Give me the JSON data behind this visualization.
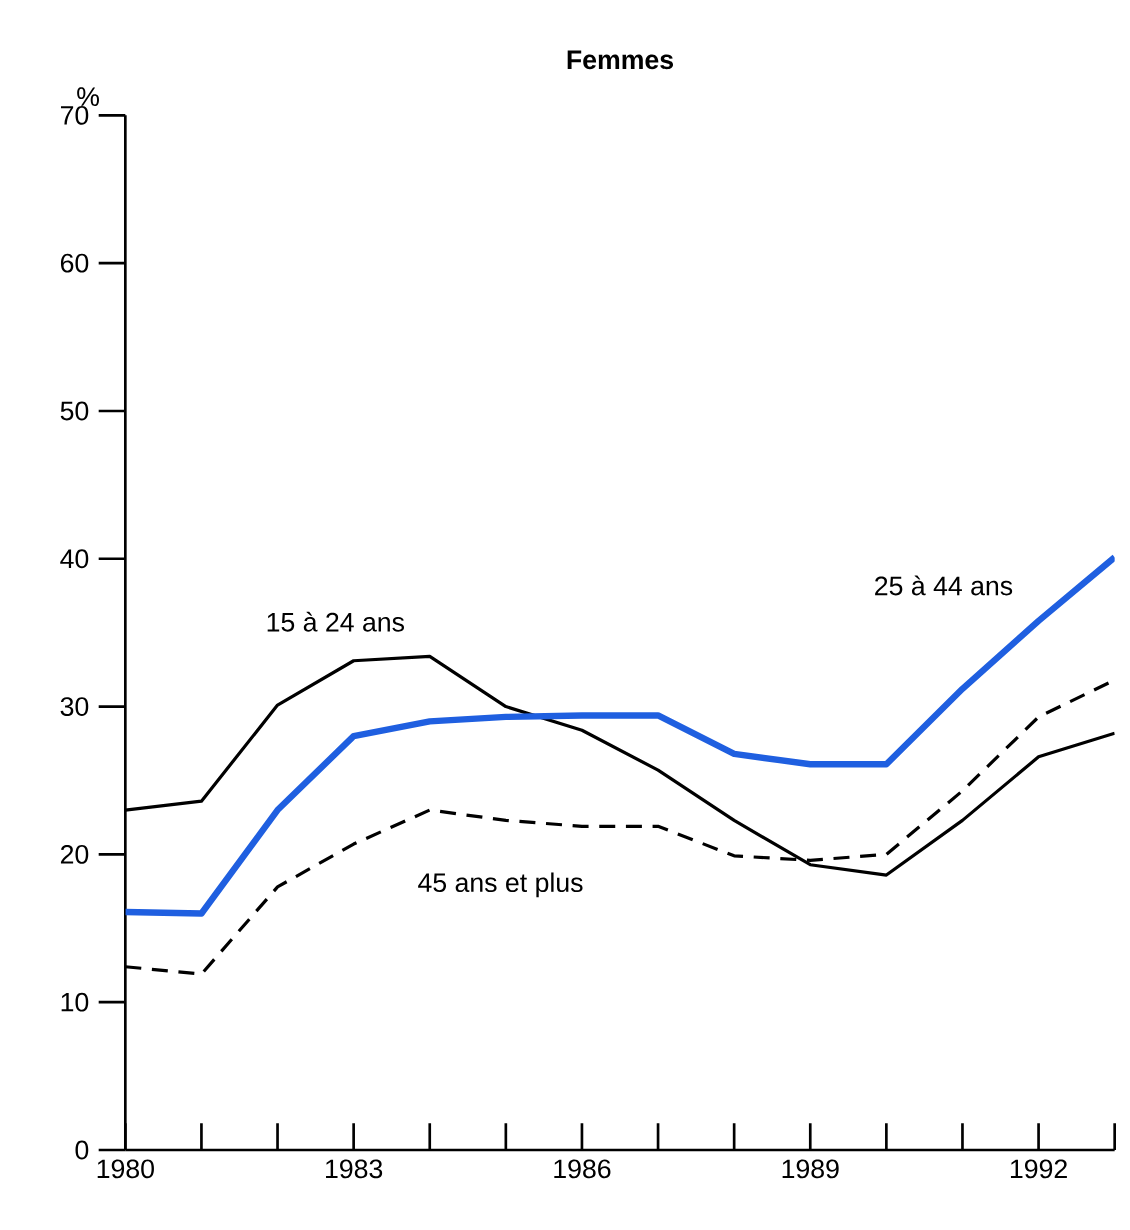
{
  "chart_data": {
    "type": "line",
    "title": "Femmes",
    "ylabel": "%",
    "x": [
      1980,
      1981,
      1982,
      1983,
      1984,
      1985,
      1986,
      1987,
      1988,
      1989,
      1990,
      1991,
      1992,
      1993
    ],
    "series": [
      {
        "name": "15 à 24 ans",
        "color": "#000000",
        "line_style": "solid",
        "values": [
          23,
          23.6,
          30.1,
          33.1,
          33.4,
          30,
          28.4,
          25.7,
          22.3,
          19.3,
          18.6,
          22.3,
          26.6,
          28.2
        ]
      },
      {
        "name": "25 à 44 ans",
        "color": "#1f5fe0",
        "line_style": "solid",
        "values": [
          16.1,
          16,
          23,
          28,
          29,
          29.3,
          29.4,
          29.4,
          26.8,
          26.1,
          26.1,
          31.2,
          35.8,
          40.1
        ]
      },
      {
        "name": "45 ans et plus",
        "color": "#000000",
        "line_style": "dashed",
        "values": [
          12.4,
          11.9,
          17.8,
          20.7,
          23,
          22.3,
          21.9,
          21.9,
          19.9,
          19.6,
          20,
          24.3,
          29.3,
          31.8
        ]
      }
    ],
    "xlim": [
      1980,
      1993
    ],
    "ylim": [
      0,
      70
    ],
    "xticks": [
      1980,
      {
        "value": 1981,
        "label": null
      },
      {
        "value": 1982,
        "label": null
      },
      1983,
      {
        "value": 1984,
        "label": null
      },
      {
        "value": 1985,
        "label": null
      },
      1986,
      {
        "value": 1987,
        "label": null
      },
      {
        "value": 1988,
        "label": null
      },
      1989,
      {
        "value": 1990,
        "label": null
      },
      {
        "value": 1991,
        "label": null
      },
      1992,
      {
        "value": 1993,
        "label": null
      }
    ],
    "yticks": [
      0,
      10,
      20,
      30,
      40,
      50,
      60,
      70
    ],
    "grid": false,
    "marker": "none"
  }
}
